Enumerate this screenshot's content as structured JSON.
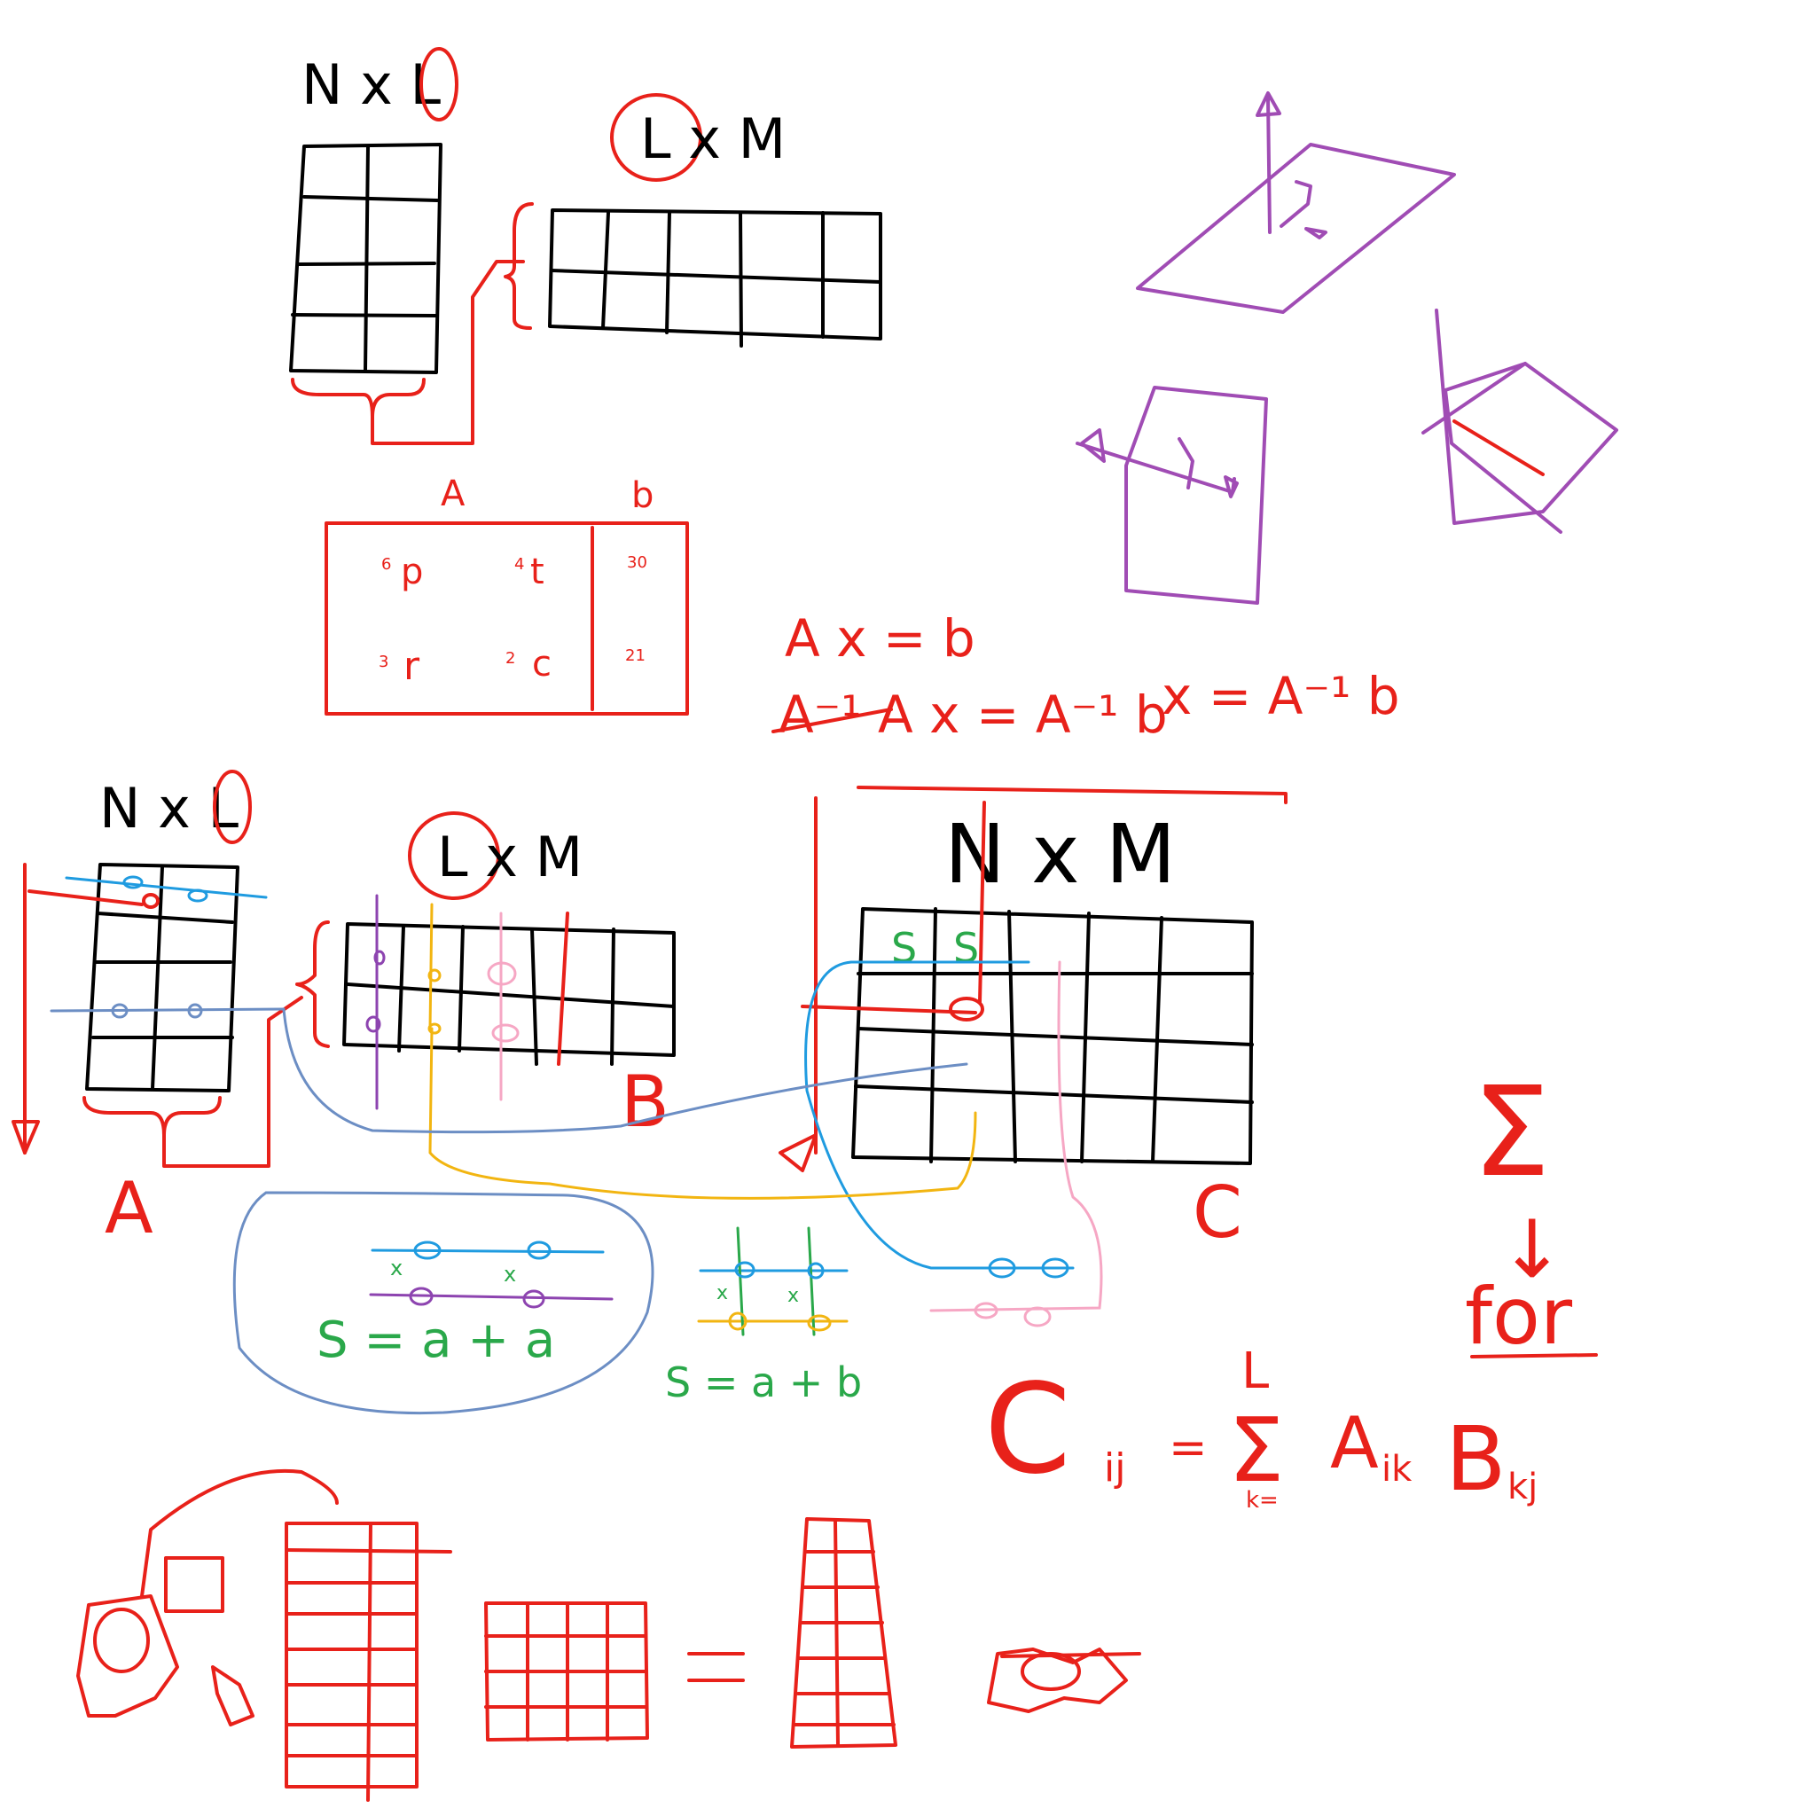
{
  "top_left": {
    "a_dims": "N x L",
    "b_dims": "L x M"
  },
  "aug_matrix": {
    "col_a_label": "A",
    "col_b_label": "b",
    "cells": [
      {
        "coef": "6",
        "sym": "p"
      },
      {
        "coef": "4",
        "sym": "t"
      },
      {
        "coef": "3",
        "sym": "r"
      },
      {
        "coef": "2",
        "sym": "c"
      }
    ],
    "rhs": [
      "30",
      "21"
    ]
  },
  "equations": {
    "line1": "A x = b",
    "line2": "A⁻¹ A x = A⁻¹ b",
    "line3": "x = A⁻¹ b"
  },
  "middle": {
    "a_dims": "N x L",
    "b_dims": "L x M",
    "c_dims": "N x M",
    "a_label": "A",
    "b_label": "B",
    "c_label": "C",
    "c_cells": [
      "S",
      "S"
    ]
  },
  "dot_products": {
    "blue_circle_eq": "S = a + a",
    "small_eq": "S = a + b",
    "times": "x"
  },
  "right": {
    "sigma": "Σ",
    "arrow": "↓",
    "for_label": "for",
    "formula": {
      "lhs": "C",
      "lhs_sub": "ij",
      "eq": "=",
      "sum_upper": "L",
      "sum_lower": "k=",
      "a": "A",
      "a_sub": "ik",
      "b": "B",
      "b_sub": "kj"
    }
  },
  "colors": {
    "red": "#e8211a",
    "black": "#000000",
    "purple": "#a04cb4",
    "blue": "#1f9be0",
    "yellow": "#f2b511",
    "pink": "#f6a7c4",
    "slate": "#6c8ec4",
    "green": "#2aa84a"
  }
}
